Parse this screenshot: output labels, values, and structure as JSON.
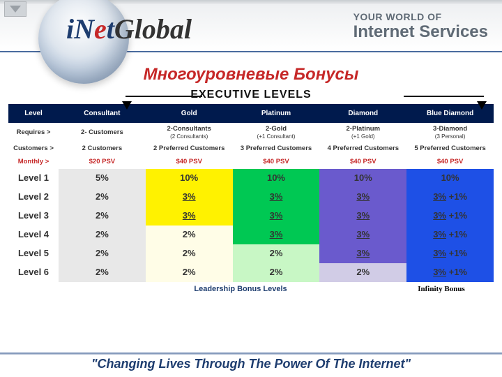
{
  "header": {
    "logo_i": "i",
    "logo_net_n": "N",
    "logo_net_e": "e",
    "logo_net_t": "t",
    "logo_global": "Global",
    "tag_top": "YOUR WORLD OF",
    "tag_bot": "Internet Services"
  },
  "title": "Многоуровневые Бонусы",
  "exec_label": "EXECUTIVE LEVELS",
  "columns": {
    "level": "Level",
    "consultant": "Consultant",
    "gold": "Gold",
    "platinum": "Platinum",
    "diamond": "Diamond",
    "blue": "Blue Diamond"
  },
  "rows": {
    "requires": {
      "label": "Requires >",
      "consultant": "2- Customers",
      "gold": "2-Consultants",
      "gold_sub": "(2 Consultants)",
      "platinum": "2-Gold",
      "platinum_sub": "(+1 Consultant)",
      "diamond": "2-Platinum",
      "diamond_sub": "(+1 Gold)",
      "blue": "3-Diamond",
      "blue_sub": "(3 Personal)"
    },
    "customers": {
      "label": "Customers >",
      "consultant": "2 Customers",
      "gold": "2 Preferred Customers",
      "platinum": "3 Preferred Customers",
      "diamond": "4 Preferred Customers",
      "blue": "5 Preferred Customers"
    },
    "monthly": {
      "label": "Monthly >",
      "consultant": "$20 PSV",
      "gold": "$40 PSV",
      "platinum": "$40 PSV",
      "diamond": "$40 PSV",
      "blue": "$40 PSV"
    }
  },
  "levels": [
    {
      "label": "Level 1",
      "cells": [
        {
          "t": "5%",
          "c": "c-gray"
        },
        {
          "t": "10%",
          "c": "c-yel"
        },
        {
          "t": "10%",
          "c": "c-grn"
        },
        {
          "t": "10%",
          "c": "c-pur"
        },
        {
          "t": "10%",
          "c": "c-blu"
        }
      ]
    },
    {
      "label": "Level 2",
      "cells": [
        {
          "t": "2%",
          "c": "c-gray"
        },
        {
          "t": "3%",
          "c": "c-yel",
          "u": true
        },
        {
          "t": "3%",
          "c": "c-grn",
          "u": true
        },
        {
          "t": "3%",
          "c": "c-pur",
          "u": true
        },
        {
          "t": "3%",
          "c": "c-blu",
          "u": true,
          "plus": " +1%"
        }
      ]
    },
    {
      "label": "Level 3",
      "cells": [
        {
          "t": "2%",
          "c": "c-gray"
        },
        {
          "t": "3%",
          "c": "c-yel",
          "u": true
        },
        {
          "t": "3%",
          "c": "c-grn",
          "u": true
        },
        {
          "t": "3%",
          "c": "c-pur",
          "u": true
        },
        {
          "t": "3%",
          "c": "c-blu",
          "u": true,
          "plus": " +1%"
        }
      ]
    },
    {
      "label": "Level 4",
      "cells": [
        {
          "t": "2%",
          "c": "c-gray"
        },
        {
          "t": "2%",
          "c": "c-yel-lt"
        },
        {
          "t": "3%",
          "c": "c-grn",
          "u": true
        },
        {
          "t": "3%",
          "c": "c-pur",
          "u": true
        },
        {
          "t": "3%",
          "c": "c-blu",
          "u": true,
          "plus": " +1%"
        }
      ]
    },
    {
      "label": "Level 5",
      "cells": [
        {
          "t": "2%",
          "c": "c-gray"
        },
        {
          "t": "2%",
          "c": "c-yel-lt"
        },
        {
          "t": "2%",
          "c": "c-grn-lt"
        },
        {
          "t": "3%",
          "c": "c-pur",
          "u": true
        },
        {
          "t": "3%",
          "c": "c-blu",
          "u": true,
          "plus": " +1%"
        }
      ]
    },
    {
      "label": "Level 6",
      "cells": [
        {
          "t": "2%",
          "c": "c-gray"
        },
        {
          "t": "2%",
          "c": "c-yel-lt"
        },
        {
          "t": "2%",
          "c": "c-grn-lt"
        },
        {
          "t": "2%",
          "c": "c-pur-lt"
        },
        {
          "t": "3%",
          "c": "c-blu",
          "u": true,
          "plus": " +1%"
        }
      ]
    }
  ],
  "bottom": {
    "leadership": "Leadership Bonus Levels",
    "infinity": "Infinity Bonus"
  },
  "footer": "\"Changing Lives Through The Power Of The Internet\""
}
